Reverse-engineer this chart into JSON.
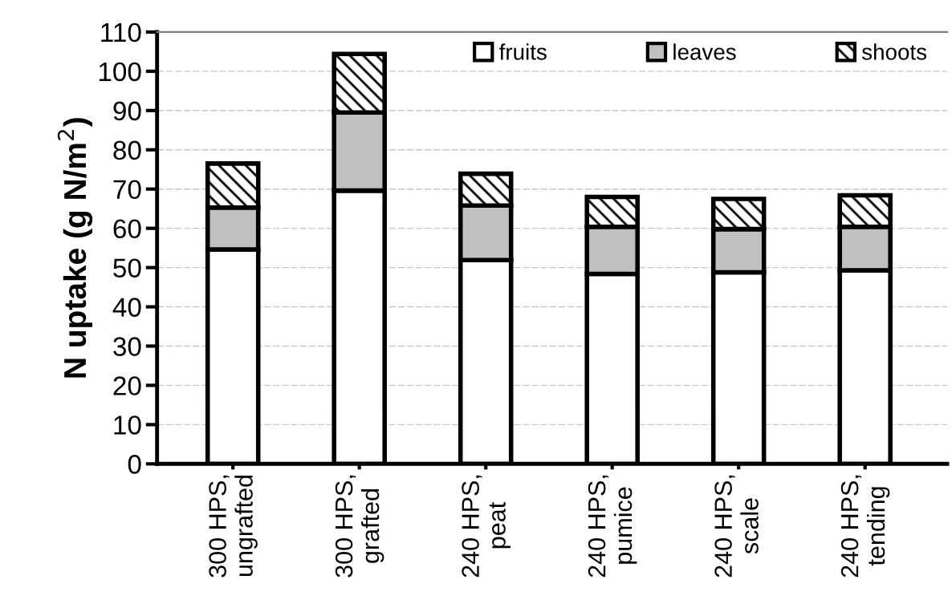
{
  "chart_data": {
    "type": "bar",
    "stacked": true,
    "ylabel": "N uptake (g N/m$^{2}$)",
    "categories": [
      "300 HPS,\nungrafted",
      "300 HPS,\ngrafted",
      "240 HPS,\npeat",
      "240 HPS,\npumice",
      "240 HPS,\nscale",
      "240 HPS,\ntending"
    ],
    "series": [
      {
        "name": "fruits",
        "color": "#ffffff",
        "values": [
          54.6,
          69.6,
          51.9,
          48.4,
          48.8,
          49.3
        ]
      },
      {
        "name": "leaves",
        "color": "#c0c0c0",
        "values": [
          10.7,
          19.9,
          13.9,
          12.0,
          11.0,
          11.1
        ]
      },
      {
        "name": "shoots",
        "color": "#000000",
        "values": [
          11.2,
          14.9,
          8.1,
          7.6,
          7.7,
          8.0
        ]
      }
    ],
    "ylim": [
      0,
      110
    ],
    "yticks": [
      0,
      10,
      20,
      30,
      40,
      50,
      60,
      70,
      80,
      90,
      100,
      110
    ],
    "grid": "y",
    "legend": "top right"
  }
}
